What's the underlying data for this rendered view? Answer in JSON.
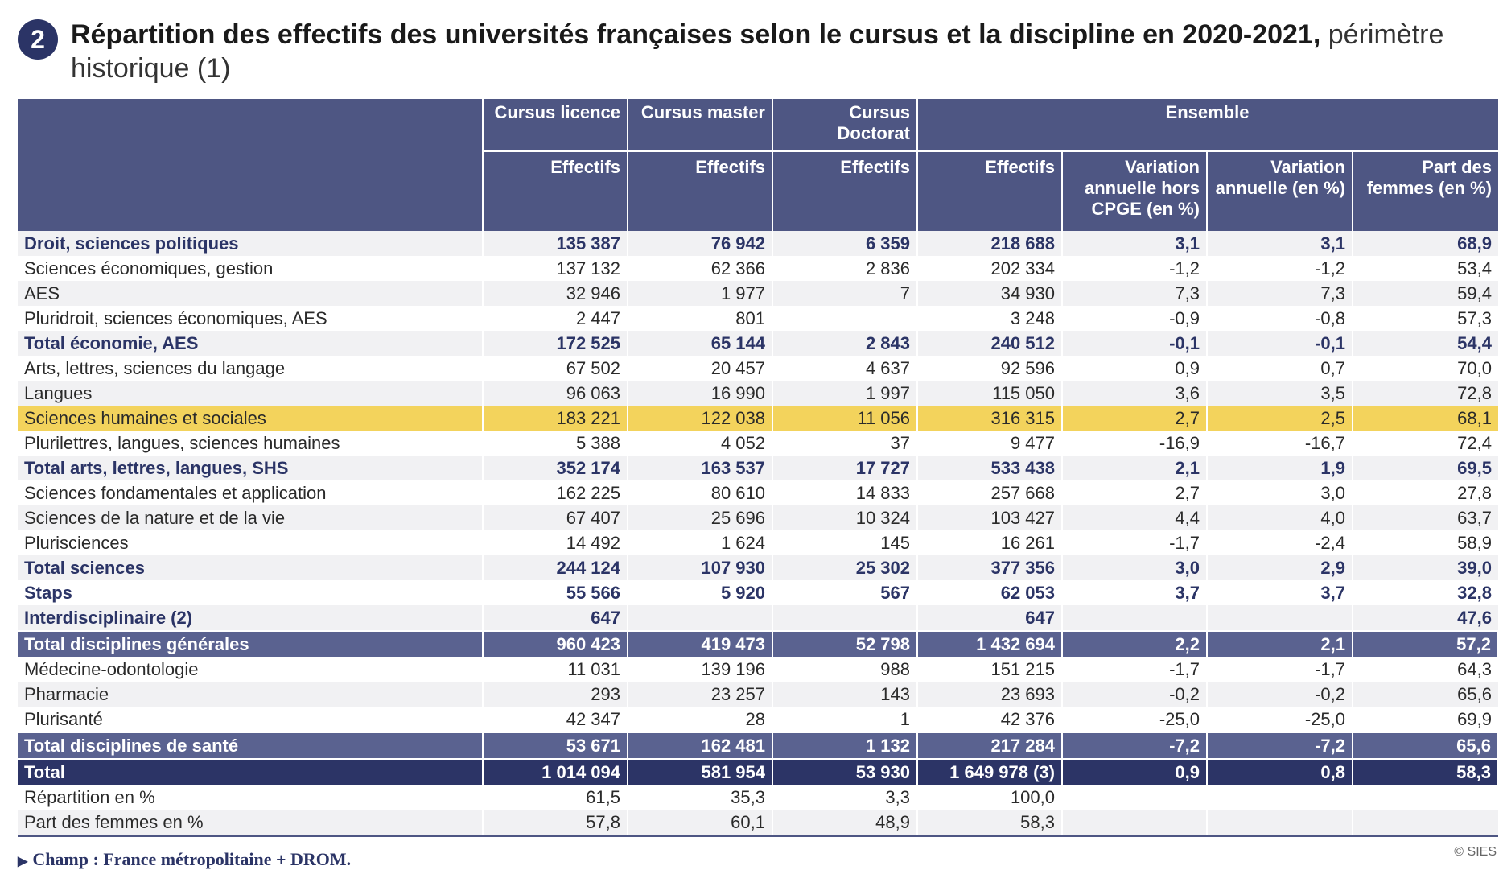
{
  "badge": "2",
  "title": {
    "bold": "Répartition des effectifs des universités françaises selon le cursus et la discipline en 2020-2021,",
    "light": " périmètre historique (1)"
  },
  "header": {
    "row1": [
      "",
      "Cursus licence",
      "Cursus master",
      "Cursus Doctorat",
      "Ensemble"
    ],
    "row2": [
      "Effectifs",
      "Effectifs",
      "Effectifs",
      "Effectifs",
      "Variation annuelle hors CPGE (en %)",
      "Variation annuelle (en %)",
      "Part des femmes (en %)"
    ]
  },
  "rows": [
    {
      "style": "bold odd",
      "cells": [
        "Droit, sciences politiques",
        "135 387",
        "76 942",
        "6 359",
        "218 688",
        "3,1",
        "3,1",
        "68,9"
      ]
    },
    {
      "style": "even",
      "cells": [
        "Sciences économiques, gestion",
        "137 132",
        "62 366",
        "2 836",
        "202 334",
        "-1,2",
        "-1,2",
        "53,4"
      ]
    },
    {
      "style": "odd",
      "cells": [
        "AES",
        "32 946",
        "1 977",
        "7",
        "34 930",
        "7,3",
        "7,3",
        "59,4"
      ]
    },
    {
      "style": "even",
      "cells": [
        "Pluridroit, sciences économiques, AES",
        "2 447",
        "801",
        "",
        "3 248",
        "-0,9",
        "-0,8",
        "57,3"
      ]
    },
    {
      "style": "bold odd",
      "cells": [
        "Total économie, AES",
        "172 525",
        "65 144",
        "2 843",
        "240 512",
        "-0,1",
        "-0,1",
        "54,4"
      ]
    },
    {
      "style": "even",
      "cells": [
        "Arts, lettres, sciences du langage",
        "67 502",
        "20 457",
        "4 637",
        "92 596",
        "0,9",
        "0,7",
        "70,0"
      ]
    },
    {
      "style": "odd",
      "cells": [
        "Langues",
        "96 063",
        "16 990",
        "1 997",
        "115 050",
        "3,6",
        "3,5",
        "72,8"
      ]
    },
    {
      "style": "hl",
      "cells": [
        "Sciences humaines et sociales",
        "183 221",
        "122 038",
        "11 056",
        "316 315",
        "2,7",
        "2,5",
        "68,1"
      ]
    },
    {
      "style": "even",
      "cells": [
        "Plurilettres, langues, sciences humaines",
        "5 388",
        "4 052",
        "37",
        "9 477",
        "-16,9",
        "-16,7",
        "72,4"
      ]
    },
    {
      "style": "bold odd",
      "cells": [
        "Total arts, lettres, langues, SHS",
        "352 174",
        "163 537",
        "17 727",
        "533 438",
        "2,1",
        "1,9",
        "69,5"
      ]
    },
    {
      "style": "even",
      "cells": [
        "Sciences fondamentales et application",
        "162 225",
        "80 610",
        "14 833",
        "257 668",
        "2,7",
        "3,0",
        "27,8"
      ]
    },
    {
      "style": "odd",
      "cells": [
        "Sciences de la nature et de la vie",
        "67 407",
        "25 696",
        "10 324",
        "103 427",
        "4,4",
        "4,0",
        "63,7"
      ]
    },
    {
      "style": "even",
      "cells": [
        "Plurisciences",
        "14 492",
        "1 624",
        "145",
        "16 261",
        "-1,7",
        "-2,4",
        "58,9"
      ]
    },
    {
      "style": "bold odd",
      "cells": [
        "Total sciences",
        "244 124",
        "107 930",
        "25 302",
        "377 356",
        "3,0",
        "2,9",
        "39,0"
      ]
    },
    {
      "style": "bold even",
      "cells": [
        "Staps",
        "55 566",
        "5 920",
        "567",
        "62 053",
        "3,7",
        "3,7",
        "32,8"
      ]
    },
    {
      "style": "bold odd",
      "cells": [
        "Interdisciplinaire (2)",
        "647",
        "",
        "",
        "647",
        "",
        "",
        "47,6"
      ]
    },
    {
      "style": "mid",
      "cells": [
        "Total disciplines générales",
        "960 423",
        "419 473",
        "52 798",
        "1 432 694",
        "2,2",
        "2,1",
        "57,2"
      ]
    },
    {
      "style": "even",
      "cells": [
        "Médecine-odontologie",
        "11 031",
        "139 196",
        "988",
        "151 215",
        "-1,7",
        "-1,7",
        "64,3"
      ]
    },
    {
      "style": "odd",
      "cells": [
        "Pharmacie",
        "293",
        "23 257",
        "143",
        "23 693",
        "-0,2",
        "-0,2",
        "65,6"
      ]
    },
    {
      "style": "even",
      "cells": [
        "Plurisanté",
        "42 347",
        "28",
        "1",
        "42 376",
        "-25,0",
        "-25,0",
        "69,9"
      ]
    },
    {
      "style": "mid",
      "cells": [
        "Total disciplines de santé",
        "53 671",
        "162 481",
        "1 132",
        "217 284",
        "-7,2",
        "-7,2",
        "65,6"
      ]
    },
    {
      "style": "dark",
      "cells": [
        "Total",
        "1 014 094",
        "581 954",
        "53 930",
        "1 649 978 (3)",
        "0,9",
        "0,8",
        "58,3"
      ]
    },
    {
      "style": "even",
      "cells": [
        "Répartition en %",
        "61,5",
        "35,3",
        "3,3",
        "100,0",
        "",
        "",
        ""
      ]
    },
    {
      "style": "odd last",
      "cells": [
        "Part des femmes en %",
        "57,8",
        "60,1",
        "48,9",
        "58,3",
        "",
        "",
        ""
      ]
    }
  ],
  "footer": {
    "arrow": "▶",
    "text": "Champ : France métropolitaine + DROM."
  },
  "credit": "© SIES"
}
